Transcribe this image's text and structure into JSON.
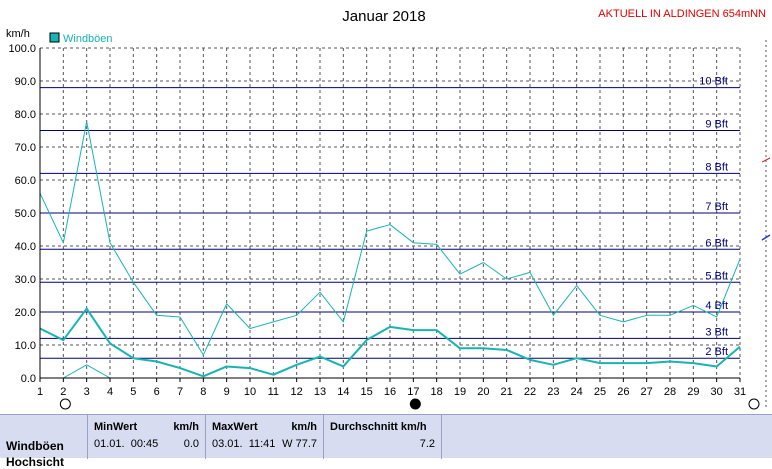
{
  "header": {
    "title": "Januar 2018",
    "location": "AKTUELL IN ALDINGEN 654mNN"
  },
  "colors": {
    "series": "#19b3b3",
    "beaufort": "#00007a",
    "grid": "#555555",
    "location": "#e00000",
    "title": "#000000",
    "panel": "#d7dcf1"
  },
  "chart_data": {
    "type": "line",
    "ylabel": "km/h",
    "ylim": [
      0,
      100
    ],
    "yticks": [
      "0.0",
      "10.0",
      "20.0",
      "30.0",
      "40.0",
      "50.0",
      "60.0",
      "70.0",
      "80.0",
      "90.0",
      "100.0"
    ],
    "xlim": [
      1,
      31
    ],
    "xticks": [
      "1",
      "2",
      "3",
      "4",
      "5",
      "6",
      "7",
      "8",
      "9",
      "10",
      "11",
      "12",
      "13",
      "14",
      "15",
      "16",
      "17",
      "18",
      "19",
      "20",
      "21",
      "22",
      "23",
      "24",
      "25",
      "26",
      "27",
      "28",
      "29",
      "30",
      "31"
    ],
    "legend": {
      "label": "Windböen",
      "placement": "top-left"
    },
    "series": [
      {
        "name": "Windböen",
        "role": "max",
        "x": [
          1,
          2,
          3,
          4,
          5,
          6,
          7,
          8,
          9,
          10,
          11,
          12,
          13,
          14,
          15,
          16,
          17,
          18,
          19,
          20,
          21,
          22,
          23,
          24,
          25,
          26,
          27,
          28,
          29,
          30,
          31
        ],
        "values": [
          56,
          41,
          77.7,
          41,
          29,
          19,
          18.5,
          7,
          22.5,
          15,
          17,
          19,
          26,
          17,
          44.5,
          46.5,
          41,
          40.5,
          31.5,
          35,
          30,
          32,
          19,
          28,
          19,
          17,
          19,
          19,
          22,
          18.5,
          36
        ]
      },
      {
        "name": "",
        "role": "mean",
        "x": [
          1,
          2,
          3,
          4,
          5,
          6,
          7,
          8,
          9,
          10,
          11,
          12,
          13,
          14,
          15,
          16,
          17,
          18,
          19,
          20,
          21,
          22,
          23,
          24,
          25,
          26,
          27,
          28,
          29,
          30,
          31
        ],
        "values": [
          15,
          11.5,
          21,
          10.5,
          6,
          5,
          3,
          0.5,
          3.5,
          3,
          1,
          4,
          6.5,
          3.5,
          11.5,
          15.5,
          14.5,
          14.5,
          9,
          9,
          8.5,
          5.5,
          4,
          6,
          4.5,
          4.5,
          4.5,
          5,
          4.5,
          3.5,
          9.5
        ]
      },
      {
        "name": "",
        "role": "min",
        "x": [
          2,
          3,
          4
        ],
        "values": [
          0,
          4,
          0
        ]
      }
    ],
    "beaufort_lines": [
      {
        "label": "2 Bft",
        "value": 6
      },
      {
        "label": "3 Bft",
        "value": 12
      },
      {
        "label": "4 Bft",
        "value": 20
      },
      {
        "label": "5 Bft",
        "value": 29
      },
      {
        "label": "6 Bft",
        "value": 39
      },
      {
        "label": "7 Bft",
        "value": 50
      },
      {
        "label": "8 Bft",
        "value": 62
      },
      {
        "label": "9 Bft",
        "value": 75
      },
      {
        "label": "10 Bft",
        "value": 88
      }
    ],
    "moon_phases": [
      {
        "day": 2,
        "phase": "full"
      },
      {
        "day": 17,
        "phase": "new"
      },
      {
        "day": 31,
        "phase": "full"
      }
    ]
  },
  "stats": {
    "row_label": "Windböen",
    "row_label_2": "Hochsicht",
    "min": {
      "header": "MinWert",
      "unit": "km/h",
      "date": "01.01.  00:45",
      "value": "0.0"
    },
    "max": {
      "header": "MaxWert",
      "unit": "km/h",
      "date": "03.01.  11:41",
      "value": "W 77.7"
    },
    "avg": {
      "header": "Durchschnitt km/h",
      "value": "7.2"
    }
  }
}
